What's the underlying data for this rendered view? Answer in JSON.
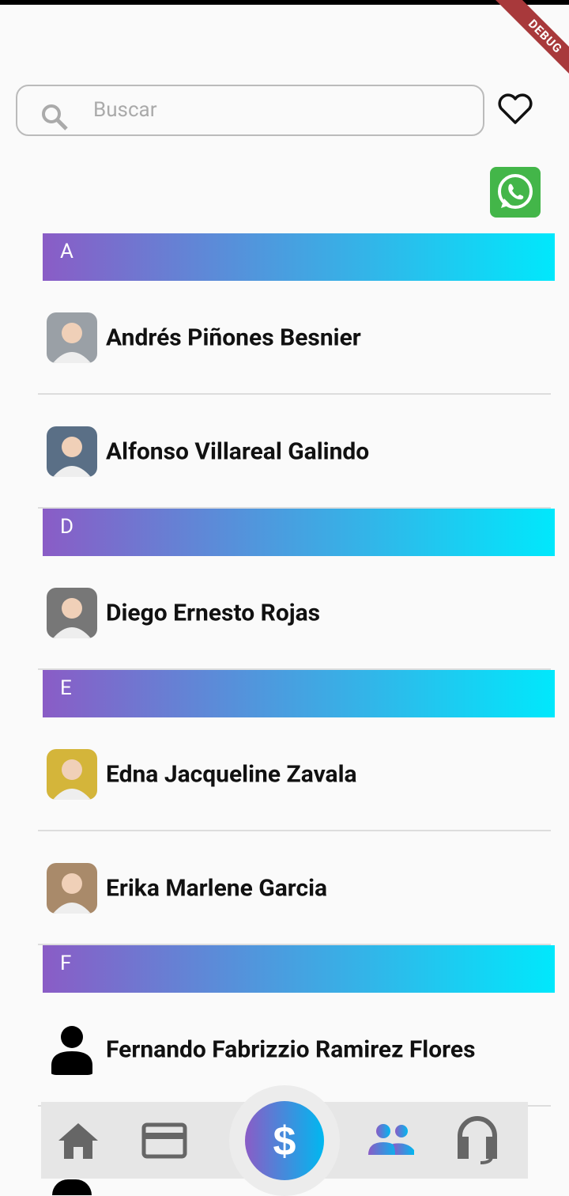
{
  "status_banner": "DEBUG",
  "search": {
    "placeholder": "Buscar"
  },
  "sections": [
    {
      "letter": "A",
      "contacts": [
        "Andrés Piñones Besnier",
        "Alfonso Villareal Galindo"
      ]
    },
    {
      "letter": "D",
      "contacts": [
        "Diego Ernesto Rojas"
      ]
    },
    {
      "letter": "E",
      "contacts": [
        "Edna Jacqueline Zavala",
        "Erika Marlene Garcia"
      ]
    },
    {
      "letter": "F",
      "contacts": [
        "Fernando Fabrizzio Ramirez Flores"
      ]
    }
  ]
}
